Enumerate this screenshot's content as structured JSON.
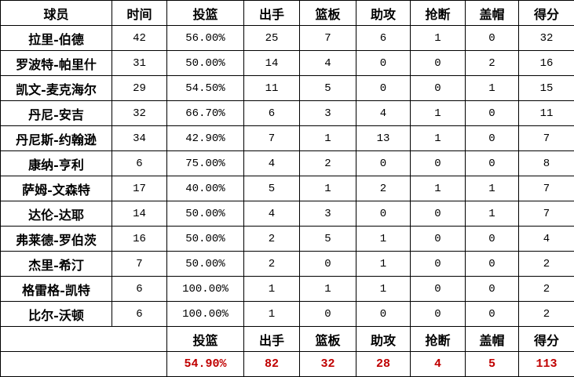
{
  "headers": [
    "球员",
    "时间",
    "投篮",
    "出手",
    "篮板",
    "助攻",
    "抢断",
    "盖帽",
    "得分"
  ],
  "rows": [
    [
      "拉里-伯德",
      "42",
      "56.00%",
      "25",
      "7",
      "6",
      "1",
      "0",
      "32"
    ],
    [
      "罗波特-帕里什",
      "31",
      "50.00%",
      "14",
      "4",
      "0",
      "0",
      "2",
      "16"
    ],
    [
      "凯文-麦克海尔",
      "29",
      "54.50%",
      "11",
      "5",
      "0",
      "0",
      "1",
      "15"
    ],
    [
      "丹尼-安吉",
      "32",
      "66.70%",
      "6",
      "3",
      "4",
      "1",
      "0",
      "11"
    ],
    [
      "丹尼斯-约翰逊",
      "34",
      "42.90%",
      "7",
      "1",
      "13",
      "1",
      "0",
      "7"
    ],
    [
      "康纳-亨利",
      "6",
      "75.00%",
      "4",
      "2",
      "0",
      "0",
      "0",
      "8"
    ],
    [
      "萨姆-文森特",
      "17",
      "40.00%",
      "5",
      "1",
      "2",
      "1",
      "1",
      "7"
    ],
    [
      "达伦-达耶",
      "14",
      "50.00%",
      "4",
      "3",
      "0",
      "0",
      "1",
      "7"
    ],
    [
      "弗莱德-罗伯茨",
      "16",
      "50.00%",
      "2",
      "5",
      "1",
      "0",
      "0",
      "4"
    ],
    [
      "杰里-希汀",
      "7",
      "50.00%",
      "2",
      "0",
      "1",
      "0",
      "0",
      "2"
    ],
    [
      "格雷格-凯特",
      "6",
      "100.00%",
      "1",
      "1",
      "1",
      "0",
      "0",
      "2"
    ],
    [
      "比尔-沃顿",
      "6",
      "100.00%",
      "1",
      "0",
      "0",
      "0",
      "0",
      "2"
    ]
  ],
  "totals_headers": [
    "投篮",
    "出手",
    "篮板",
    "助攻",
    "抢断",
    "盖帽",
    "得分"
  ],
  "totals": [
    "54.90%",
    "82",
    "32",
    "28",
    "4",
    "5",
    "113"
  ],
  "colors": {
    "totals_text": "#c00000",
    "border": "#000000"
  }
}
